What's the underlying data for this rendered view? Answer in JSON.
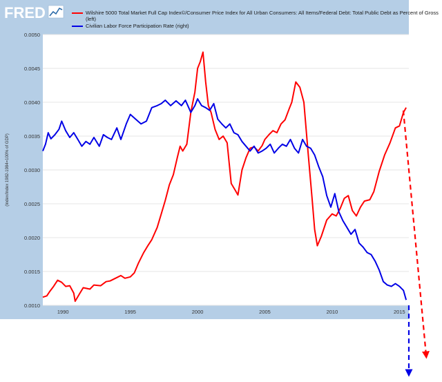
{
  "header": {
    "logo": "FRED",
    "logo_icon": "line-graph-icon"
  },
  "colors": {
    "header_band": "#b5cee6",
    "plot_bg": "#ffffff",
    "grid": "#e6e6e6",
    "series1": "#ff0000",
    "series2": "#0000e6",
    "logo_text": "#ffffff",
    "logo_accent": "#2a6aa8"
  },
  "chart_data": {
    "type": "line",
    "title": "",
    "xlabel": "",
    "ylabel": "(Index/Index 1982-1984=100% of GDP)",
    "xlim": [
      1988.5,
      2015.7
    ],
    "ylim": [
      0.001,
      0.005
    ],
    "grid": "horizontal",
    "legend": "top",
    "x_ticks": [
      {
        "value": 1990,
        "label": "1990"
      },
      {
        "value": 1995,
        "label": "1995"
      },
      {
        "value": 2000,
        "label": "2000"
      },
      {
        "value": 2005,
        "label": "2005"
      },
      {
        "value": 2010,
        "label": "2010"
      },
      {
        "value": 2015,
        "label": "2015"
      }
    ],
    "y_ticks": [
      {
        "value": 0.001,
        "label": "0.0010"
      },
      {
        "value": 0.0015,
        "label": "0.0015"
      },
      {
        "value": 0.002,
        "label": "0.0020"
      },
      {
        "value": 0.0025,
        "label": "0.0025"
      },
      {
        "value": 0.003,
        "label": "0.0030"
      },
      {
        "value": 0.0035,
        "label": "0.0035"
      },
      {
        "value": 0.004,
        "label": "0.0040"
      },
      {
        "value": 0.0045,
        "label": "0.0045"
      },
      {
        "value": 0.005,
        "label": "0.0050"
      }
    ],
    "series": [
      {
        "name": "Wilshire 5000 Total Market Full Cap Index©/Consumer Price Index for All Urban Consumers: All Items/Federal Debt: Total Public Debt as Percent of Gross Domestic Product (left)",
        "color": "#ff0000",
        "points": [
          [
            1988.5,
            0.00112
          ],
          [
            1988.8,
            0.00114
          ],
          [
            1989.0,
            0.0012
          ],
          [
            1989.3,
            0.00128
          ],
          [
            1989.6,
            0.00137
          ],
          [
            1989.9,
            0.00134
          ],
          [
            1990.2,
            0.00128
          ],
          [
            1990.5,
            0.00129
          ],
          [
            1990.8,
            0.00118
          ],
          [
            1990.9,
            0.00106
          ],
          [
            1991.2,
            0.00116
          ],
          [
            1991.5,
            0.00126
          ],
          [
            1992.0,
            0.00124
          ],
          [
            1992.3,
            0.0013
          ],
          [
            1992.8,
            0.00129
          ],
          [
            1993.2,
            0.00135
          ],
          [
            1993.5,
            0.00136
          ],
          [
            1994.0,
            0.00141
          ],
          [
            1994.3,
            0.00144
          ],
          [
            1994.6,
            0.0014
          ],
          [
            1995.0,
            0.00142
          ],
          [
            1995.3,
            0.00148
          ],
          [
            1995.6,
            0.00162
          ],
          [
            1996.0,
            0.00178
          ],
          [
            1996.3,
            0.00188
          ],
          [
            1996.6,
            0.00197
          ],
          [
            1997.0,
            0.00215
          ],
          [
            1997.3,
            0.00235
          ],
          [
            1997.6,
            0.00255
          ],
          [
            1997.9,
            0.00278
          ],
          [
            1998.2,
            0.00293
          ],
          [
            1998.5,
            0.00319
          ],
          [
            1998.7,
            0.00335
          ],
          [
            1998.9,
            0.00328
          ],
          [
            1999.2,
            0.00338
          ],
          [
            1999.5,
            0.00385
          ],
          [
            1999.8,
            0.00415
          ],
          [
            2000.0,
            0.0045
          ],
          [
            2000.2,
            0.0046
          ],
          [
            2000.4,
            0.00474
          ],
          [
            2000.6,
            0.0043
          ],
          [
            2000.8,
            0.00395
          ],
          [
            2001.0,
            0.00385
          ],
          [
            2001.3,
            0.0036
          ],
          [
            2001.6,
            0.00345
          ],
          [
            2001.9,
            0.0035
          ],
          [
            2002.2,
            0.0034
          ],
          [
            2002.5,
            0.0028
          ],
          [
            2002.8,
            0.0027
          ],
          [
            2003.0,
            0.00263
          ],
          [
            2003.3,
            0.003
          ],
          [
            2003.6,
            0.00318
          ],
          [
            2003.9,
            0.00332
          ],
          [
            2004.2,
            0.00334
          ],
          [
            2004.5,
            0.00328
          ],
          [
            2004.8,
            0.00336
          ],
          [
            2005.0,
            0.00345
          ],
          [
            2005.3,
            0.00352
          ],
          [
            2005.6,
            0.00358
          ],
          [
            2005.9,
            0.00355
          ],
          [
            2006.2,
            0.00368
          ],
          [
            2006.5,
            0.00374
          ],
          [
            2006.8,
            0.0039
          ],
          [
            2007.0,
            0.004
          ],
          [
            2007.3,
            0.0043
          ],
          [
            2007.6,
            0.00422
          ],
          [
            2007.9,
            0.004
          ],
          [
            2008.2,
            0.00328
          ],
          [
            2008.5,
            0.0026
          ],
          [
            2008.7,
            0.00212
          ],
          [
            2008.9,
            0.00188
          ],
          [
            2009.2,
            0.00202
          ],
          [
            2009.6,
            0.00226
          ],
          [
            2010.0,
            0.00235
          ],
          [
            2010.3,
            0.00232
          ],
          [
            2010.6,
            0.00243
          ],
          [
            2010.9,
            0.00258
          ],
          [
            2011.2,
            0.00262
          ],
          [
            2011.5,
            0.0024
          ],
          [
            2011.8,
            0.00232
          ],
          [
            2012.1,
            0.00245
          ],
          [
            2012.4,
            0.00254
          ],
          [
            2012.8,
            0.00256
          ],
          [
            2013.1,
            0.00268
          ],
          [
            2013.5,
            0.00298
          ],
          [
            2013.9,
            0.00322
          ],
          [
            2014.3,
            0.0034
          ],
          [
            2014.7,
            0.00362
          ],
          [
            2015.0,
            0.00365
          ],
          [
            2015.3,
            0.00385
          ],
          [
            2015.5,
            0.00392
          ]
        ]
      },
      {
        "name": "Civilian Labor Force Participation Rate (right)",
        "color": "#0000e6",
        "points": [
          [
            1988.5,
            0.00328
          ],
          [
            1988.7,
            0.00338
          ],
          [
            1988.9,
            0.00355
          ],
          [
            1989.1,
            0.00346
          ],
          [
            1989.4,
            0.00352
          ],
          [
            1989.7,
            0.0036
          ],
          [
            1989.9,
            0.00372
          ],
          [
            1990.2,
            0.00358
          ],
          [
            1990.5,
            0.00348
          ],
          [
            1990.8,
            0.00355
          ],
          [
            1991.1,
            0.00345
          ],
          [
            1991.4,
            0.00335
          ],
          [
            1991.7,
            0.00342
          ],
          [
            1992.0,
            0.00338
          ],
          [
            1992.3,
            0.00348
          ],
          [
            1992.7,
            0.00335
          ],
          [
            1993.0,
            0.00352
          ],
          [
            1993.3,
            0.00348
          ],
          [
            1993.6,
            0.00345
          ],
          [
            1994.0,
            0.00362
          ],
          [
            1994.3,
            0.00345
          ],
          [
            1994.7,
            0.00368
          ],
          [
            1995.0,
            0.00382
          ],
          [
            1995.4,
            0.00375
          ],
          [
            1995.8,
            0.00368
          ],
          [
            1996.2,
            0.00372
          ],
          [
            1996.6,
            0.00392
          ],
          [
            1997.0,
            0.00395
          ],
          [
            1997.3,
            0.00398
          ],
          [
            1997.6,
            0.00403
          ],
          [
            1998.0,
            0.00395
          ],
          [
            1998.4,
            0.00402
          ],
          [
            1998.8,
            0.00395
          ],
          [
            1999.1,
            0.00403
          ],
          [
            1999.5,
            0.00385
          ],
          [
            1999.8,
            0.00395
          ],
          [
            2000.0,
            0.00405
          ],
          [
            2000.3,
            0.00395
          ],
          [
            2000.6,
            0.00392
          ],
          [
            2000.9,
            0.00388
          ],
          [
            2001.2,
            0.00398
          ],
          [
            2001.5,
            0.00375
          ],
          [
            2001.8,
            0.00368
          ],
          [
            2002.1,
            0.00362
          ],
          [
            2002.4,
            0.00368
          ],
          [
            2002.7,
            0.00355
          ],
          [
            2003.0,
            0.00352
          ],
          [
            2003.3,
            0.00342
          ],
          [
            2003.6,
            0.00335
          ],
          [
            2003.9,
            0.00328
          ],
          [
            2004.2,
            0.00335
          ],
          [
            2004.5,
            0.00325
          ],
          [
            2004.8,
            0.00328
          ],
          [
            2005.1,
            0.00332
          ],
          [
            2005.4,
            0.00338
          ],
          [
            2005.7,
            0.00325
          ],
          [
            2006.0,
            0.00332
          ],
          [
            2006.3,
            0.00338
          ],
          [
            2006.6,
            0.00335
          ],
          [
            2006.9,
            0.00345
          ],
          [
            2007.2,
            0.00332
          ],
          [
            2007.5,
            0.00325
          ],
          [
            2007.8,
            0.00345
          ],
          [
            2008.1,
            0.00335
          ],
          [
            2008.4,
            0.00332
          ],
          [
            2008.7,
            0.00322
          ],
          [
            2009.0,
            0.00305
          ],
          [
            2009.3,
            0.0029
          ],
          [
            2009.6,
            0.00262
          ],
          [
            2009.9,
            0.00245
          ],
          [
            2010.2,
            0.00265
          ],
          [
            2010.5,
            0.00238
          ],
          [
            2010.8,
            0.00225
          ],
          [
            2011.1,
            0.00215
          ],
          [
            2011.4,
            0.00205
          ],
          [
            2011.7,
            0.00212
          ],
          [
            2012.0,
            0.00192
          ],
          [
            2012.3,
            0.00186
          ],
          [
            2012.6,
            0.00178
          ],
          [
            2012.9,
            0.00175
          ],
          [
            2013.2,
            0.00165
          ],
          [
            2013.5,
            0.00152
          ],
          [
            2013.8,
            0.00135
          ],
          [
            2014.1,
            0.0013
          ],
          [
            2014.4,
            0.00128
          ],
          [
            2014.7,
            0.00132
          ],
          [
            2015.0,
            0.00128
          ],
          [
            2015.3,
            0.00122
          ],
          [
            2015.5,
            0.00108
          ]
        ]
      }
    ],
    "annotations": [
      {
        "type": "dashed-arrow",
        "color": "#ff0000",
        "from": [
          2015.6,
          0.0039
        ],
        "to_direction": "down-right"
      },
      {
        "type": "dashed-arrow",
        "color": "#0000e6",
        "from": [
          2015.6,
          0.0011
        ],
        "to_direction": "down"
      }
    ]
  }
}
